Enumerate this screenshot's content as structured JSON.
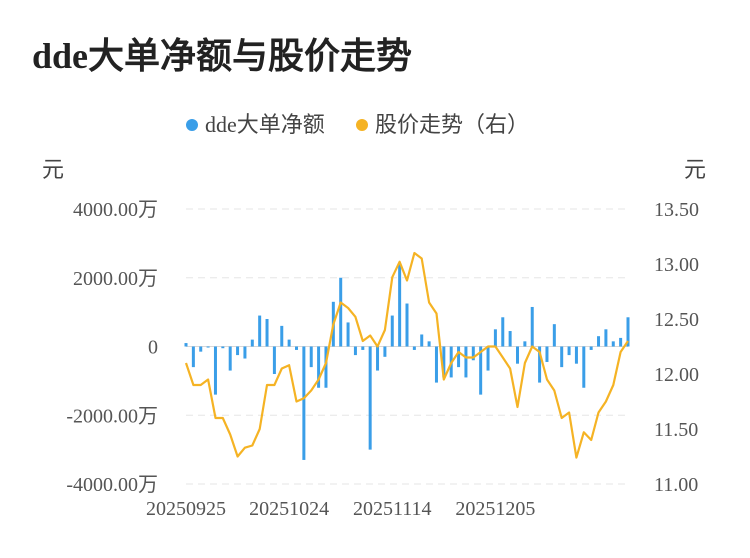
{
  "title": "dde大单净额与股价走势",
  "chart_data": {
    "type": "bar+line",
    "legend": {
      "position": "top-center"
    },
    "series": [
      {
        "name": "dde大单净额",
        "type": "bar",
        "axis": "left",
        "color": "#3a9ee8",
        "values": [
          100,
          -600,
          -150,
          -30,
          -1400,
          -50,
          -700,
          -250,
          -350,
          200,
          900,
          800,
          -800,
          600,
          200,
          -100,
          -3300,
          -600,
          -1200,
          -1200,
          1300,
          2000,
          700,
          -250,
          -100,
          -3000,
          -700,
          -300,
          900,
          2400,
          1250,
          -100,
          350,
          150,
          -1050,
          -900,
          -900,
          -600,
          -900,
          -400,
          -1400,
          -700,
          500,
          850,
          450,
          -500,
          150,
          1150,
          -1050,
          -450,
          650,
          -600,
          -250,
          -500,
          -1200,
          -100,
          300,
          500,
          150,
          250,
          850
        ]
      },
      {
        "name": "股价走势（右）",
        "type": "line",
        "axis": "right",
        "color": "#f5b324",
        "values": [
          12.1,
          11.9,
          11.9,
          11.95,
          11.6,
          11.6,
          11.45,
          11.25,
          11.33,
          11.35,
          11.5,
          11.9,
          11.9,
          12.05,
          12.08,
          11.75,
          11.78,
          11.85,
          11.95,
          12.1,
          12.45,
          12.65,
          12.6,
          12.52,
          12.3,
          12.35,
          12.25,
          12.4,
          12.88,
          13.02,
          12.85,
          13.1,
          13.05,
          12.65,
          12.55,
          11.95,
          12.1,
          12.2,
          12.15,
          12.15,
          12.2,
          12.25,
          12.25,
          12.15,
          12.05,
          11.7,
          12.1,
          12.25,
          12.2,
          11.95,
          11.85,
          11.6,
          11.65,
          11.24,
          11.47,
          11.4,
          11.65,
          11.75,
          11.9,
          12.2,
          12.3
        ]
      }
    ],
    "x_tick_labels": [
      "20250925",
      "20251024",
      "20251114",
      "20251205"
    ],
    "x_tick_index": [
      0,
      14,
      28,
      42
    ],
    "y_left": {
      "unit": "元",
      "min": -4000,
      "max": 4000,
      "ticks": [
        4000,
        2000,
        0,
        -2000,
        -4000
      ],
      "tick_labels": [
        "4000.00万",
        "2000.00万",
        "0",
        "-2000.00万",
        "-4000.00万"
      ]
    },
    "y_right": {
      "unit": "元",
      "min": 11.0,
      "max": 13.5,
      "ticks": [
        13.5,
        13.0,
        12.5,
        12.0,
        11.5,
        11.0
      ],
      "tick_labels": [
        "13.50",
        "13.00",
        "12.50",
        "12.00",
        "11.50",
        "11.00"
      ]
    },
    "grid": true
  }
}
